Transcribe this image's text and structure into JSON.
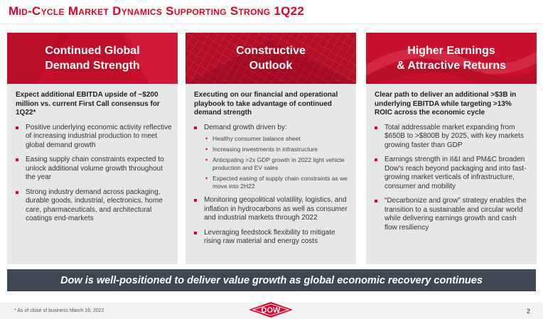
{
  "slide": {
    "title": "Mid-Cycle Market Dynamics Supporting Strong 1Q22",
    "page_number": "2",
    "footnote": "* As of close of business March 16, 2022",
    "tagline": "Dow is well-positioned to deliver value growth as global economic recovery continues"
  },
  "logo": {
    "text": "DOW",
    "color": "#e4002b"
  },
  "colors": {
    "accent": "#e4002b",
    "banner": "#c8102e",
    "panel": "#e6e7e8",
    "bar": "#3d4852"
  },
  "panels": [
    {
      "heading_line1": "Continued Global",
      "heading_line2": "Demand Strength",
      "lead": "Expect additional EBITDA upside of ~$200 million vs. current First Call consensus for 1Q22*",
      "bullets": [
        "Positive underlying economic activity reflective of increasing industrial production to meet global demand growth",
        "Easing supply chain constraints expected to unlock additional volume growth throughout the year",
        "Strong industry demand across packaging, durable goods, industrial, electronics, home care, pharmaceuticals, and architectural coatings end-markets"
      ]
    },
    {
      "heading_line1": "Constructive",
      "heading_line2": "Outlook",
      "lead": "Executing on our financial and operational playbook to take advantage of continued demand strength",
      "bullet1": "Demand growth driven by:",
      "sub_bullets": [
        "Healthy consumer balance sheet",
        "Increasing investments in infrastructure",
        "Anticipating >2x GDP growth in 2022 light vehicle production and EV sales",
        "Expected easing of supply chain constraints as we move into 2H22"
      ],
      "bullet2": "Monitoring geopolitical volatility, logistics, and inflation in hydrocarbons as well as consumer and industrial markets through 2022",
      "bullet3": "Leveraging feedstock flexibility to mitigate rising raw material and energy costs"
    },
    {
      "heading_line1": "Higher Earnings",
      "heading_line2": "& Attractive Returns",
      "lead": "Clear path to deliver an additional >$3B in underlying EBITDA while targeting >13% ROIC across the economic cycle",
      "bullets": [
        "Total addressable market expanding from $650B to >$800B by 2025, with key markets growing faster than GDP",
        "Earnings strength in II&I and PM&C broaden Dow’s reach beyond packaging and into fast-growing market verticals of infrastructure, consumer and mobility",
        "“Decarbonize and grow” strategy enables the transition to a sustainable and circular world while delivering earnings growth and cash flow resiliency"
      ]
    }
  ]
}
